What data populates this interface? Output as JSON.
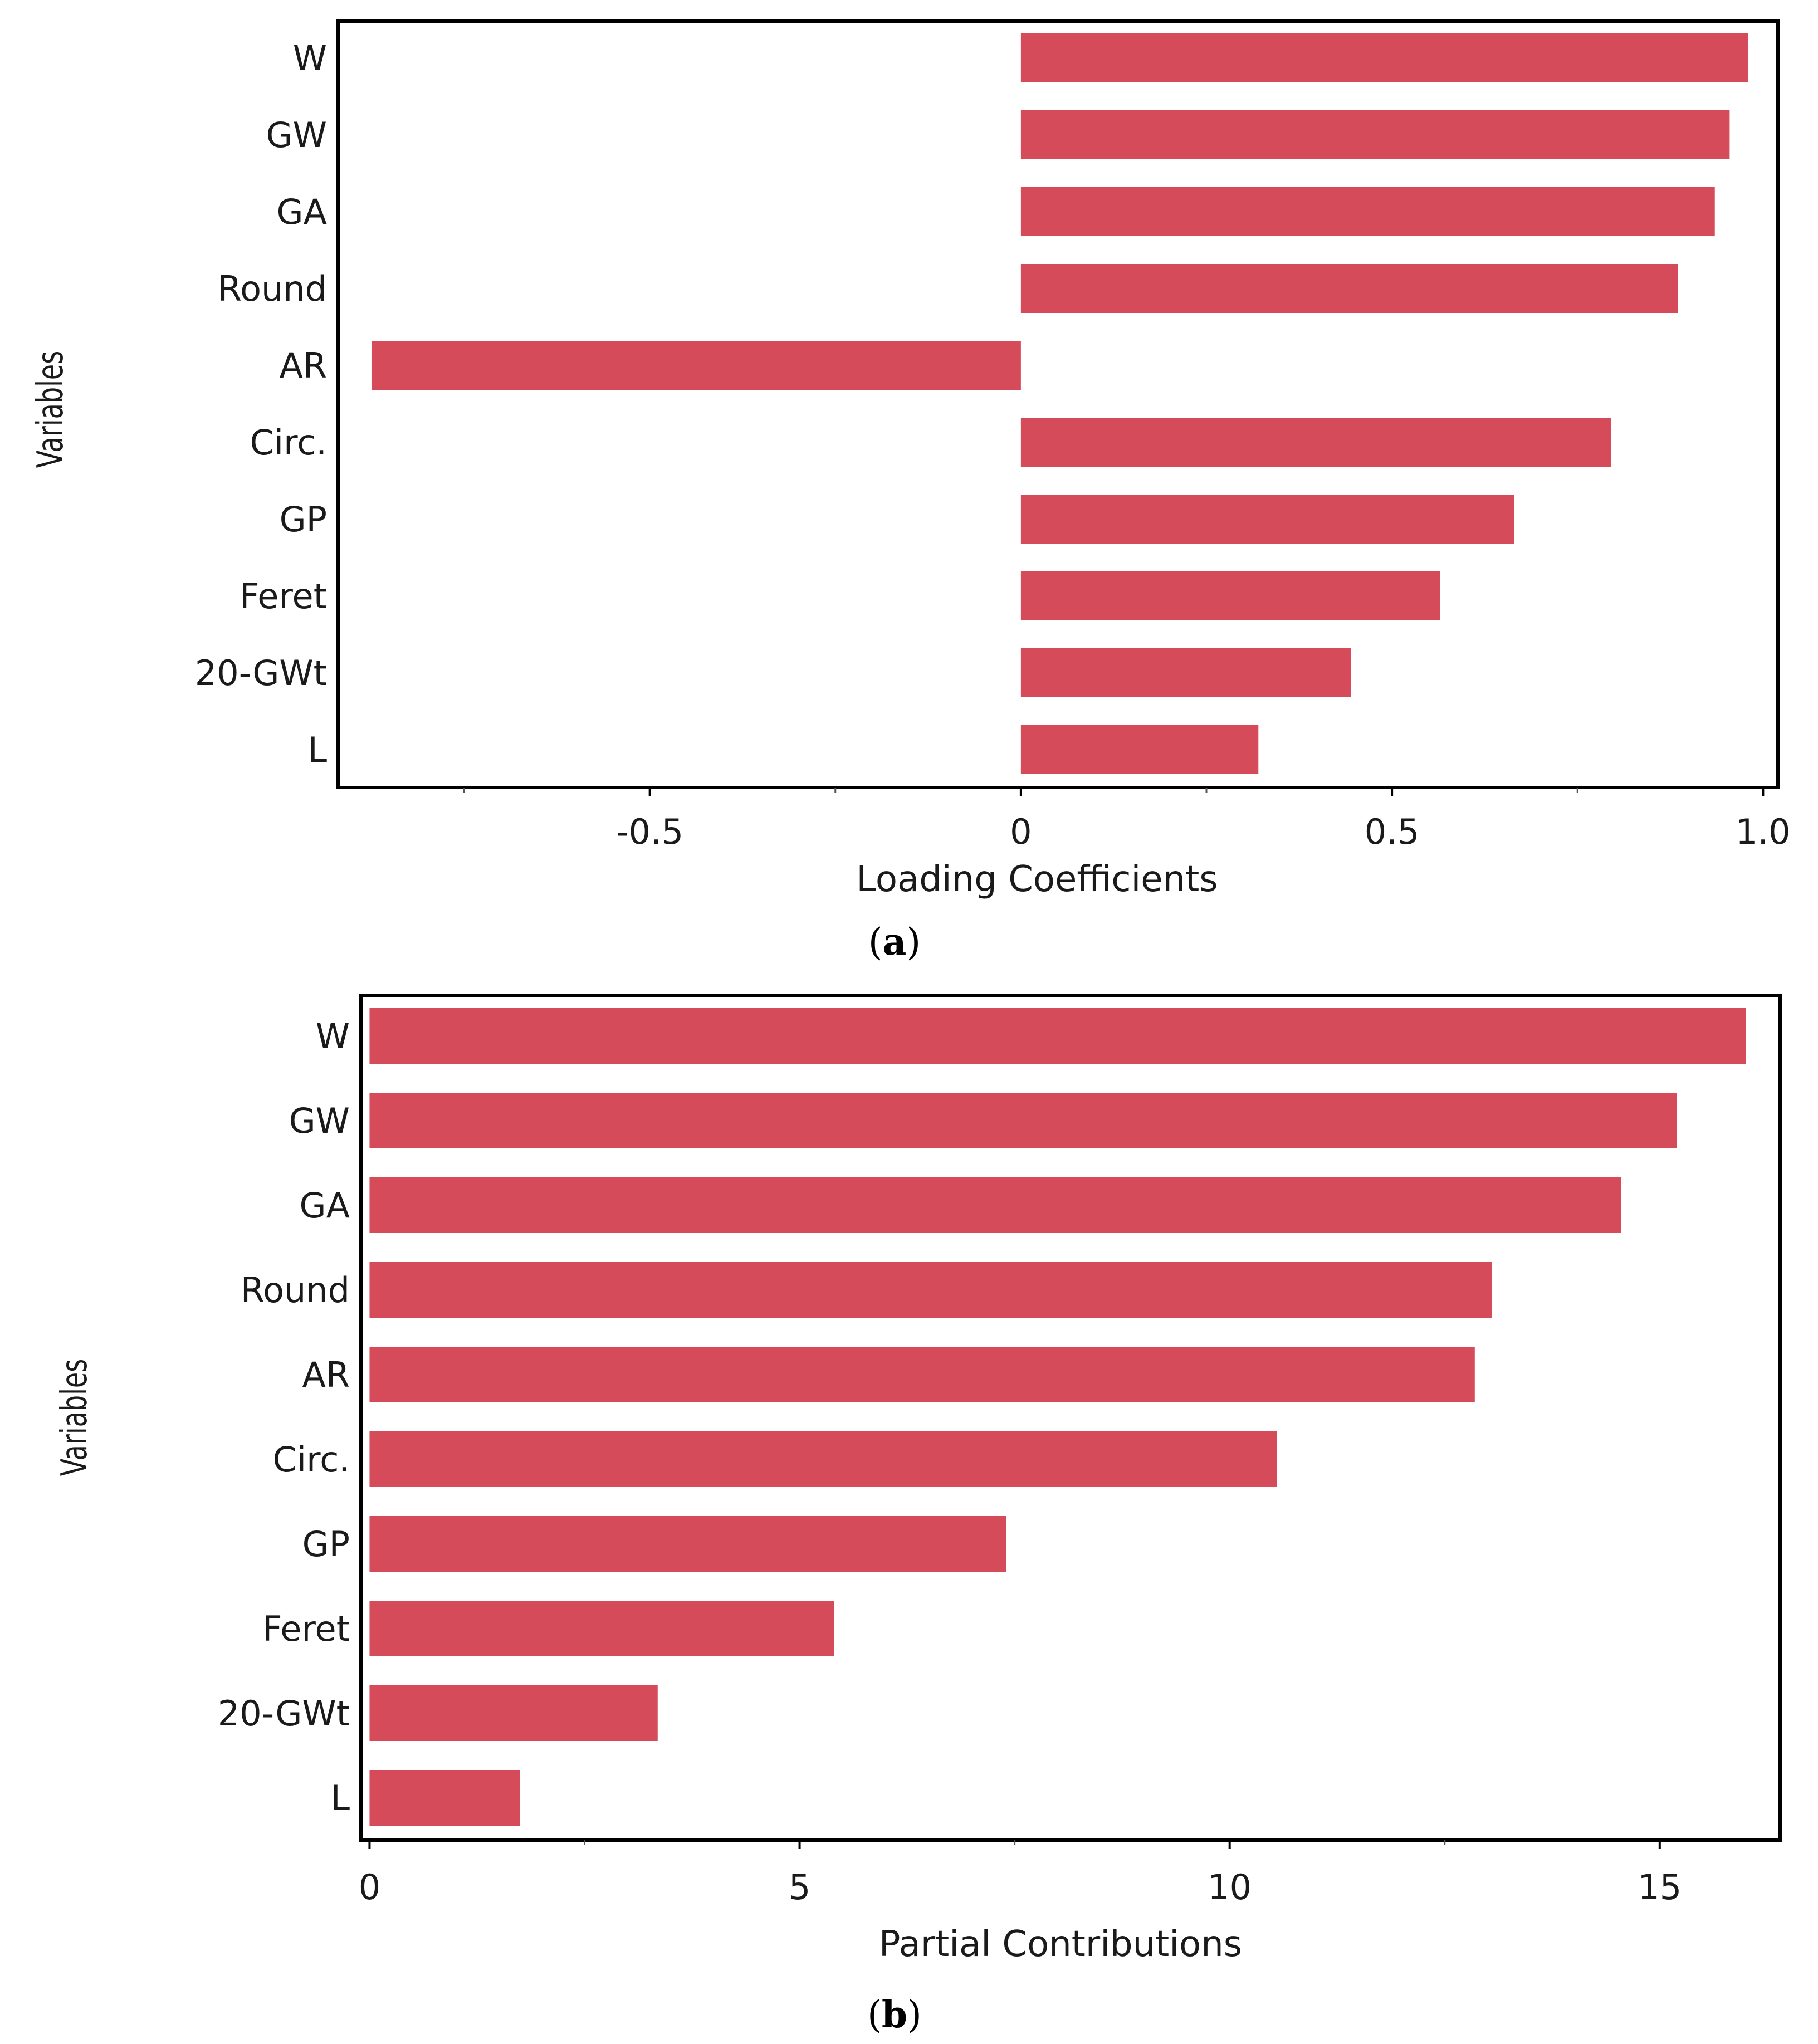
{
  "chart_data": [
    {
      "id": "a",
      "type": "bar",
      "orientation": "horizontal",
      "title": "",
      "caption": "a",
      "ylabel": "Variables",
      "xlabel": "Loading Coefficients",
      "categories": [
        "W",
        "GW",
        "GA",
        "Round",
        "AR",
        "Circ.",
        "GP",
        "Feret",
        "20-GWt",
        "L"
      ],
      "values": [
        0.98,
        0.955,
        0.935,
        0.885,
        -0.875,
        0.795,
        0.665,
        0.565,
        0.445,
        0.32
      ],
      "xlim": [
        -0.92,
        1.02
      ],
      "xticks": [
        -0.5,
        0,
        0.5,
        1.0
      ],
      "xtick_labels": [
        "-0.5",
        "0",
        "0.5",
        "1.0"
      ],
      "minor_ticks": [
        -0.75,
        -0.25,
        0.25,
        0.75
      ],
      "bar_color": "#d64b5a",
      "grid": false
    },
    {
      "id": "b",
      "type": "bar",
      "orientation": "horizontal",
      "title": "",
      "caption": "b",
      "ylabel": "Variables",
      "xlabel": "Partial Contributions",
      "categories": [
        "W",
        "GW",
        "GA",
        "Round",
        "AR",
        "Circ.",
        "GP",
        "Feret",
        "20-GWt",
        "L"
      ],
      "values": [
        16.0,
        15.2,
        14.55,
        13.05,
        12.85,
        10.55,
        7.4,
        5.4,
        3.35,
        1.75
      ],
      "xlim": [
        -0.1,
        16.4
      ],
      "xticks": [
        0,
        5,
        10,
        15
      ],
      "xtick_labels": [
        "0",
        "5",
        "10",
        "15"
      ],
      "minor_ticks": [
        2.5,
        7.5,
        12.5
      ],
      "bar_color": "#d64b5a",
      "grid": false
    }
  ]
}
